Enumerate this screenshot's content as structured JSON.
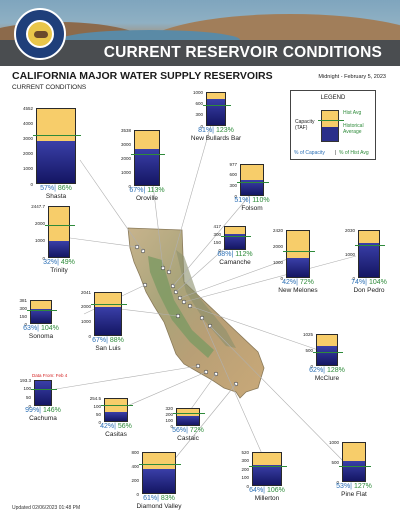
{
  "header": {
    "banner_title": "CURRENT RESERVOIR CONDITIONS",
    "seal_text": "Department of Water Resources, State of California"
  },
  "title": "CALIFORNIA MAJOR WATER SUPPLY RESERVOIRS",
  "subtitle": "CURRENT CONDITIONS",
  "date": "Midnight - February 5, 2023",
  "legend": {
    "title": "LEGEND",
    "capacity_label": "Capacity (TAF)",
    "hist_avg_label": "Hist Avg",
    "historical_average_label": "Historical Average",
    "pct_capacity_label": "% of Capacity",
    "pct_hist_label": "% of Hist Avg",
    "separator": "|"
  },
  "colors": {
    "capacity_fill": "#f7cd6a",
    "storage_fill": "#1e2278",
    "hist_avg_line": "#2e8b3a",
    "pct_capacity_text": "#2b6fb5",
    "pct_hist_text": "#2e8b3a"
  },
  "reservoirs": [
    {
      "name": "Shasta",
      "capacity_taf": 4552,
      "ticks": [
        "4552",
        "4000",
        "3000",
        "2000",
        "1000",
        "0"
      ],
      "pct_capacity": "57%",
      "pct_hist": "86%",
      "fill_fraction": 0.57,
      "avg_fraction": 0.663
    },
    {
      "name": "Oroville",
      "capacity_taf": 3538,
      "ticks": [
        "3538",
        "3000",
        "2000",
        "1000",
        "0"
      ],
      "pct_capacity": "67%",
      "pct_hist": "113%",
      "fill_fraction": 0.67,
      "avg_fraction": 0.593
    },
    {
      "name": "New Bullards Bar",
      "capacity_taf": 966,
      "ticks": [
        "1000",
        "600",
        "300",
        "0"
      ],
      "pct_capacity": "81%",
      "pct_hist": "123%",
      "fill_fraction": 0.81,
      "avg_fraction": 0.659
    },
    {
      "name": "Folsom",
      "capacity_taf": 977,
      "ticks": [
        "977",
        "600",
        "300",
        "0"
      ],
      "pct_capacity": "51%",
      "pct_hist": "110%",
      "fill_fraction": 0.51,
      "avg_fraction": 0.464
    },
    {
      "name": "Trinity",
      "capacity_taf": 2447,
      "ticks": [
        "2447.7",
        "2000",
        "1000",
        "0"
      ],
      "pct_capacity": "32%",
      "pct_hist": "49%",
      "fill_fraction": 0.32,
      "avg_fraction": 0.653
    },
    {
      "name": "Camanche",
      "capacity_taf": 417,
      "ticks": [
        "417",
        "300",
        "150",
        "0"
      ],
      "pct_capacity": "68%",
      "pct_hist": "112%",
      "fill_fraction": 0.68,
      "avg_fraction": 0.607
    },
    {
      "name": "New Melones",
      "capacity_taf": 2420,
      "ticks": [
        "2420",
        "2000",
        "1000",
        "0"
      ],
      "pct_capacity": "42%",
      "pct_hist": "72%",
      "fill_fraction": 0.42,
      "avg_fraction": 0.583
    },
    {
      "name": "Don Pedro",
      "capacity_taf": 2030,
      "ticks": [
        "2030",
        "1000",
        "0"
      ],
      "pct_capacity": "74%",
      "pct_hist": "104%",
      "fill_fraction": 0.74,
      "avg_fraction": 0.712
    },
    {
      "name": "Sonoma",
      "capacity_taf": 381,
      "ticks": [
        "381",
        "300",
        "150",
        "0"
      ],
      "pct_capacity": "63%",
      "pct_hist": "104%",
      "fill_fraction": 0.63,
      "avg_fraction": 0.606
    },
    {
      "name": "San Luis",
      "capacity_taf": 2041,
      "ticks": [
        "2041",
        "2000",
        "1000",
        "0"
      ],
      "pct_capacity": "67%",
      "pct_hist": "88%",
      "fill_fraction": 0.67,
      "avg_fraction": 0.761
    },
    {
      "name": "McClure",
      "capacity_taf": 1025,
      "ticks": [
        "1025",
        "500",
        "0"
      ],
      "pct_capacity": "62%",
      "pct_hist": "128%",
      "fill_fraction": 0.62,
      "avg_fraction": 0.484
    },
    {
      "name": "Cachuma",
      "capacity_taf": 193.3,
      "ticks": [
        "193.3",
        "100",
        "50",
        "0"
      ],
      "pct_capacity": "99%",
      "pct_hist": "146%",
      "fill_fraction": 0.99,
      "avg_fraction": 0.678,
      "note": "Data From: Feb 4"
    },
    {
      "name": "Castaic",
      "capacity_taf": 320,
      "ticks": [
        "320",
        "200",
        "100",
        "0"
      ],
      "pct_capacity": "56%",
      "pct_hist": "72%",
      "fill_fraction": 0.56,
      "avg_fraction": 0.778
    },
    {
      "name": "Casitas",
      "capacity_taf": 254.5,
      "ticks": [
        "254.5",
        "100",
        "50",
        "0"
      ],
      "pct_capacity": "42%",
      "pct_hist": "56%",
      "fill_fraction": 0.42,
      "avg_fraction": 0.75
    },
    {
      "name": "Diamond Valley",
      "capacity_taf": 810,
      "ticks": [
        "800",
        "400",
        "200",
        "0"
      ],
      "pct_capacity": "61%",
      "pct_hist": "83%",
      "fill_fraction": 0.61,
      "avg_fraction": 0.735
    },
    {
      "name": "Millerton",
      "capacity_taf": 520,
      "ticks": [
        "520",
        "300",
        "200",
        "100",
        "0"
      ],
      "pct_capacity": "64%",
      "pct_hist": "106%",
      "fill_fraction": 0.64,
      "avg_fraction": 0.604
    },
    {
      "name": "Pine Flat",
      "capacity_taf": 1000,
      "ticks": [
        "1000",
        "500",
        "0"
      ],
      "pct_capacity": "53%",
      "pct_hist": "127%",
      "fill_fraction": 0.53,
      "avg_fraction": 0.417
    }
  ],
  "footer": {
    "updated": "Updated 02/06/2023 01:48 PM"
  }
}
